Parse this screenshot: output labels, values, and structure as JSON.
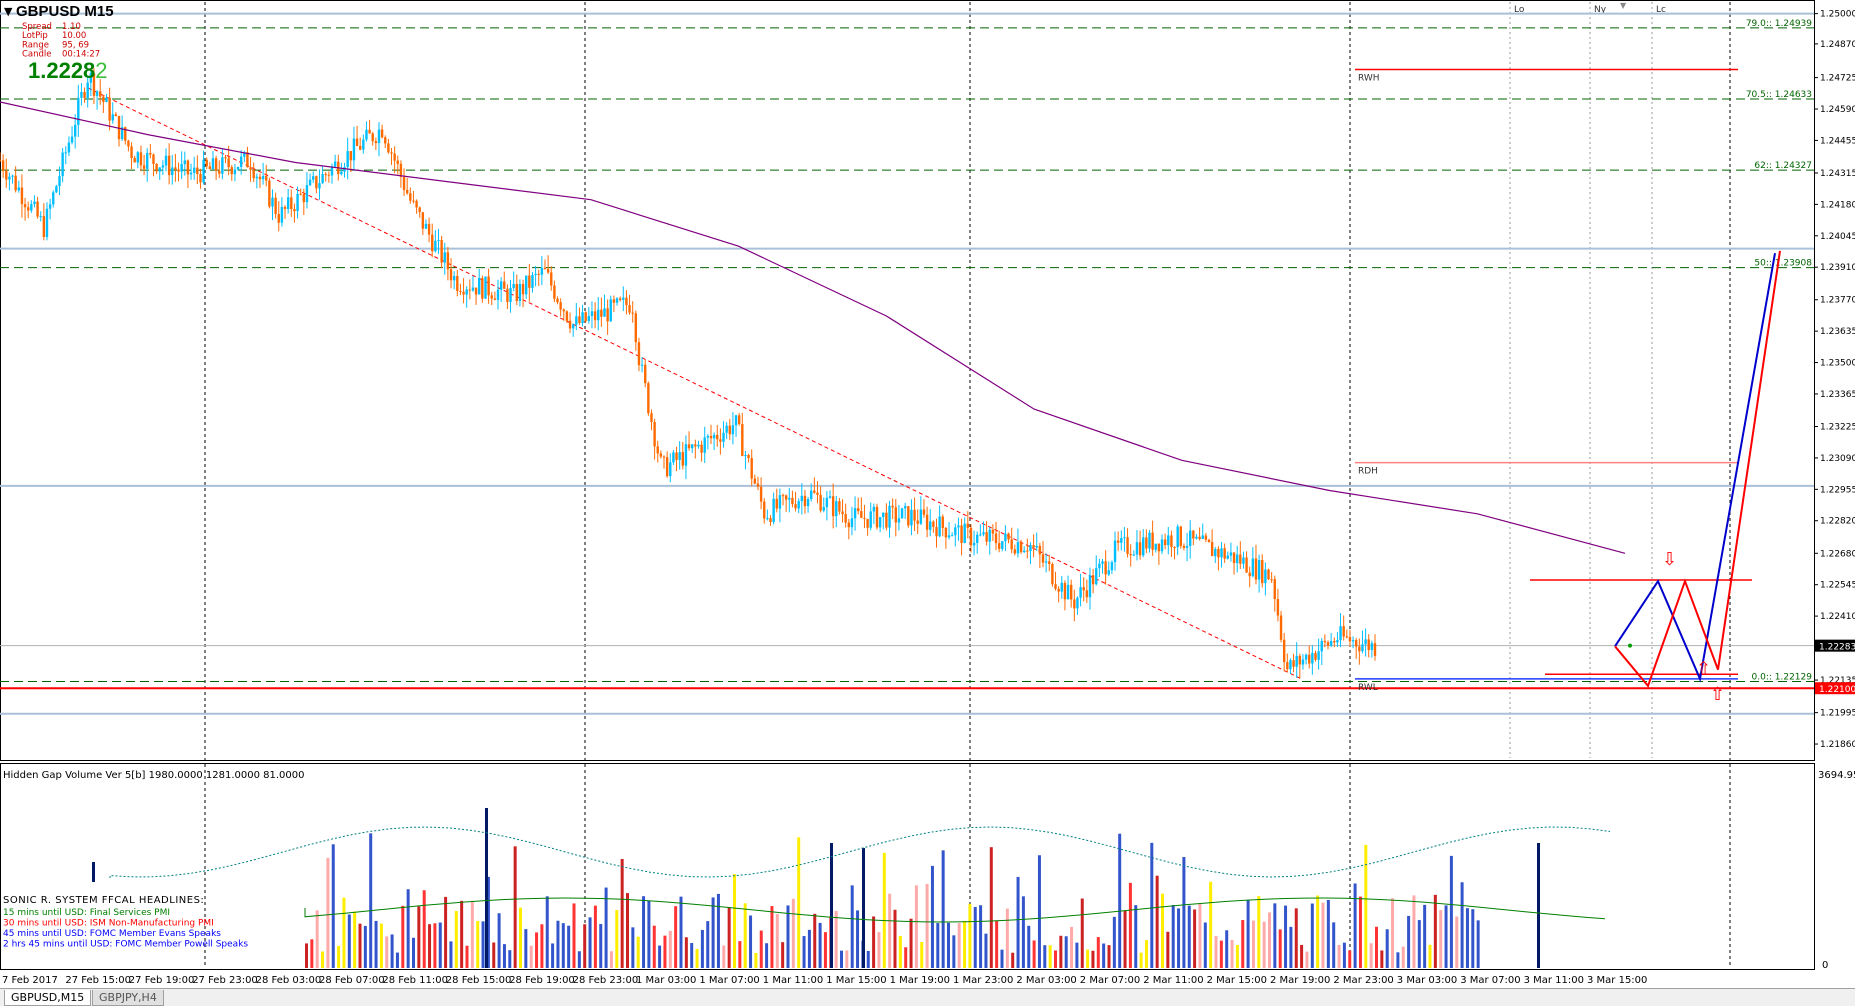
{
  "header": {
    "symbol": "GBPUSD",
    "timeframe": "M15",
    "info": [
      {
        "label": "Spread",
        "value": "1.10"
      },
      {
        "label": "LotPip",
        "value": "10.00"
      },
      {
        "label": "Range",
        "value": "95, 69"
      },
      {
        "label": "Candle",
        "value": "00:14:27"
      }
    ],
    "price_main": "1.2228",
    "price_last": "2"
  },
  "sessions": [
    "Lo",
    "Ny",
    "Lc"
  ],
  "colors": {
    "bull": "#00bfff",
    "bear": "#ff6a00",
    "ma": "#800080",
    "fib": "#006400",
    "level_red": "#ff0000",
    "level_blue": "#1e3aff",
    "gray_level": "#a9c0d8",
    "bid": "#000000",
    "signal_red": "#ff0000",
    "signal_blue": "#0000cc"
  },
  "price_axis": {
    "labels": [
      "1.25000",
      "1.24870",
      "1.24725",
      "1.24590",
      "1.24455",
      "1.24315",
      "1.24180",
      "1.24045",
      "1.23910",
      "1.23770",
      "1.23635",
      "1.23500",
      "1.23365",
      "1.23225",
      "1.23090",
      "1.22955",
      "1.22820",
      "1.22680",
      "1.22545",
      "1.22410",
      "1.22275",
      "1.22135",
      "1.21995",
      "1.21860"
    ],
    "bid_tag": "1.22283",
    "red_tag": "1.22100"
  },
  "levels": {
    "fib": [
      {
        "label": "79.0:: 1.24939",
        "price": 1.24939
      },
      {
        "label": "70.5:: 1.24633",
        "price": 1.24633
      },
      {
        "label": "62:: 1.24327",
        "price": 1.24327
      },
      {
        "label": "50:: 1.23908",
        "price": 1.23908
      },
      {
        "label": "0.0:: 1.22129",
        "price": 1.22129
      }
    ],
    "rwh": "RWH",
    "rdh": "RDH",
    "rwl": "RWL"
  },
  "x_axis": [
    "7 Feb 2017",
    "27 Feb 15:00",
    "27 Feb 19:00",
    "27 Feb 23:00",
    "28 Feb 03:00",
    "28 Feb 07:00",
    "28 Feb 11:00",
    "28 Feb 15:00",
    "28 Feb 19:00",
    "28 Feb 23:00",
    "1 Mar 03:00",
    "1 Mar 07:00",
    "1 Mar 11:00",
    "1 Mar 15:00",
    "1 Mar 19:00",
    "1 Mar 23:00",
    "2 Mar 03:00",
    "2 Mar 07:00",
    "2 Mar 11:00",
    "2 Mar 15:00",
    "2 Mar 19:00",
    "2 Mar 23:00",
    "3 Mar 03:00",
    "3 Mar 07:00",
    "3 Mar 11:00",
    "3 Mar 15:00"
  ],
  "volume": {
    "title": "Hidden Gap Volume Ver 5[b] 1980.0000 1281.0000 81.0000",
    "max_label": "3694.95",
    "zero_label": "0"
  },
  "news": {
    "title": "SONIC R. SYSTEM  FFCAL HEADLINES:",
    "items": [
      {
        "text": "15 mins until USD: Final Services PMI",
        "color": "#008000"
      },
      {
        "text": "30 mins until USD: ISM Non-Manufacturing PMI",
        "color": "#ff0000"
      },
      {
        "text": "45 mins until USD: FOMC Member Evans Speaks",
        "color": "#0000ff"
      },
      {
        "text": "2 hrs 45 mins until USD: FOMC Member Powell Speaks",
        "color": "#0000ff"
      }
    ]
  },
  "tabs": [
    {
      "label": "GBPUSD,M15",
      "active": true
    },
    {
      "label": "GBPJPY,H4",
      "active": false
    }
  ],
  "chart_data": {
    "type": "candlestick",
    "symbol": "GBPUSD",
    "timeframe": "M15",
    "price_range": [
      1.218,
      1.2505
    ],
    "anchors": [
      {
        "t": 0,
        "p": 1.2437
      },
      {
        "t": 0.03,
        "p": 1.2408
      },
      {
        "t": 0.06,
        "p": 1.2474
      },
      {
        "t": 0.09,
        "p": 1.244
      },
      {
        "t": 0.13,
        "p": 1.2431
      },
      {
        "t": 0.17,
        "p": 1.2437
      },
      {
        "t": 0.19,
        "p": 1.2413
      },
      {
        "t": 0.23,
        "p": 1.2436
      },
      {
        "t": 0.26,
        "p": 1.2451
      },
      {
        "t": 0.28,
        "p": 1.2418
      },
      {
        "t": 0.31,
        "p": 1.2385
      },
      {
        "t": 0.35,
        "p": 1.2379
      },
      {
        "t": 0.37,
        "p": 1.2389
      },
      {
        "t": 0.39,
        "p": 1.2366
      },
      {
        "t": 0.43,
        "p": 1.2376
      },
      {
        "t": 0.435,
        "p": 1.235
      },
      {
        "t": 0.45,
        "p": 1.2304
      },
      {
        "t": 0.5,
        "p": 1.2324
      },
      {
        "t": 0.52,
        "p": 1.2285
      },
      {
        "t": 0.55,
        "p": 1.2294
      },
      {
        "t": 0.58,
        "p": 1.2283
      },
      {
        "t": 0.62,
        "p": 1.2284
      },
      {
        "t": 0.66,
        "p": 1.2275
      },
      {
        "t": 0.7,
        "p": 1.2272
      },
      {
        "t": 0.73,
        "p": 1.2247
      },
      {
        "t": 0.76,
        "p": 1.227
      },
      {
        "t": 0.8,
        "p": 1.2275
      },
      {
        "t": 0.84,
        "p": 1.2266
      },
      {
        "t": 0.865,
        "p": 1.2258
      },
      {
        "t": 0.875,
        "p": 1.2218
      },
      {
        "t": 0.91,
        "p": 1.2232
      },
      {
        "t": 0.935,
        "p": 1.2228
      }
    ],
    "ma_points": [
      [
        1.2462,
        1.2448,
        1.2436,
        1.2428,
        1.242,
        1.24,
        1.237,
        1.233,
        1.2308,
        1.2295,
        1.2285,
        1.2268
      ]
    ],
    "trendline": {
      "from": [
        0.06,
        1.2468
      ],
      "to": [
        0.885,
        1.2214
      ]
    },
    "projection": {
      "blue": [
        1.2228,
        1.2256,
        1.2214,
        1.2397
      ],
      "red": [
        1.2228,
        1.2211,
        1.2256,
        1.2218,
        1.2398
      ]
    }
  }
}
